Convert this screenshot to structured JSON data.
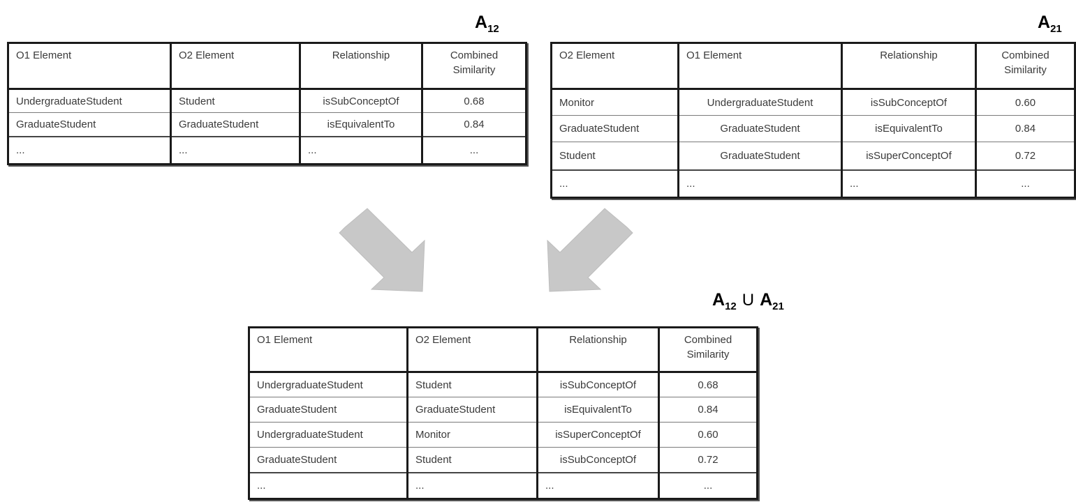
{
  "labels": {
    "a12": {
      "base": "A",
      "sub": "12"
    },
    "a21": {
      "base": "A",
      "sub": "21"
    },
    "union": {
      "left_base": "A",
      "left_sub": "12",
      "operator": "U",
      "right_base": "A",
      "right_sub": "21"
    }
  },
  "table_a12": {
    "headers": [
      "O1 Element",
      "O2 Element",
      "Relationship",
      "Combined Similarity"
    ],
    "rows": [
      [
        "UndergraduateStudent",
        "Student",
        "isSubConceptOf",
        "0.68"
      ],
      [
        "GraduateStudent",
        "GraduateStudent",
        "isEquivalentTo",
        "0.84"
      ],
      [
        "...",
        "...",
        "...",
        "..."
      ]
    ]
  },
  "table_a21": {
    "headers": [
      "O2 Element",
      "O1 Element",
      "Relationship",
      "Combined Similarity"
    ],
    "rows": [
      [
        "Monitor",
        "UndergraduateStudent",
        "isSubConceptOf",
        "0.60"
      ],
      [
        "GraduateStudent",
        "GraduateStudent",
        "isEquivalentTo",
        "0.84"
      ],
      [
        "Student",
        "GraduateStudent",
        "isSuperConceptOf",
        "0.72"
      ],
      [
        "...",
        "...",
        "...",
        "..."
      ]
    ]
  },
  "table_union": {
    "headers": [
      "O1 Element",
      "O2 Element",
      "Relationship",
      "Combined Similarity"
    ],
    "rows": [
      [
        "UndergraduateStudent",
        "Student",
        "isSubConceptOf",
        "0.68"
      ],
      [
        "GraduateStudent",
        "GraduateStudent",
        "isEquivalentTo",
        "0.84"
      ],
      [
        "UndergraduateStudent",
        "Monitor",
        "isSuperConceptOf",
        "0.60"
      ],
      [
        "GraduateStudent",
        "Student",
        "isSubConceptOf",
        "0.72"
      ],
      [
        "...",
        "...",
        "...",
        "..."
      ]
    ]
  },
  "colors": {
    "arrow": "#c8c8c8",
    "border": "#1a1a1a"
  }
}
